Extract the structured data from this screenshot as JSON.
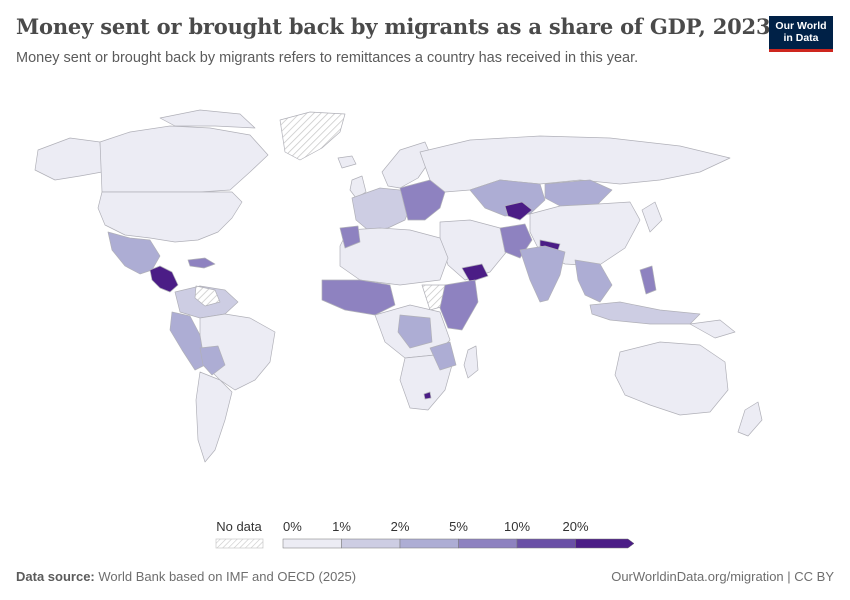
{
  "header": {
    "title": "Money sent or brought back by migrants as a share of GDP, 2023",
    "subtitle": "Money sent or brought back by migrants refers to remittances a country has received in this year."
  },
  "logo": {
    "line1": "Our World",
    "line2": "in Data"
  },
  "legend": {
    "no_data_label": "No data",
    "bins": [
      {
        "label": "0%",
        "color": "#ececf4"
      },
      {
        "label": "1%",
        "color": "#cdcde3"
      },
      {
        "label": "2%",
        "color": "#adadd4"
      },
      {
        "label": "5%",
        "color": "#8e82c0"
      },
      {
        "label": "10%",
        "color": "#6a50a6"
      },
      {
        "label": "20%",
        "color": "#4b1d86"
      }
    ]
  },
  "footer": {
    "source_label": "Data source:",
    "source_text": "World Bank based on IMF and OECD (2025)",
    "url_text": "OurWorldinData.org/migration | CC BY"
  },
  "colors": {
    "land_default": "#ececf4",
    "border": "#b0b0b8",
    "brand_navy": "#002147",
    "brand_red": "#ce261e"
  }
}
